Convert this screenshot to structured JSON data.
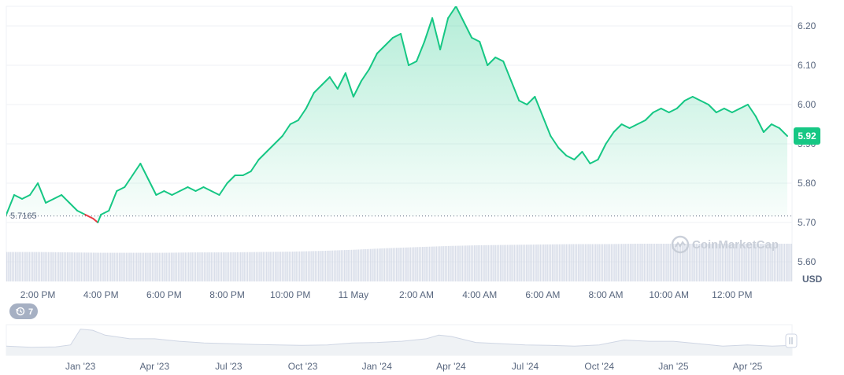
{
  "chart_data": {
    "type": "line",
    "currency": "USD",
    "watermark": "CoinMarketCap",
    "reference_label": "5.7165",
    "reference_value": 5.7165,
    "current_value_label": "5.92",
    "current_value": 5.92,
    "ylim": [
      5.55,
      6.25
    ],
    "y_ticks": [
      "5.60",
      "5.70",
      "5.80",
      "5.90",
      "6.00",
      "6.10",
      "6.20"
    ],
    "x_ticks": [
      "2:00 PM",
      "4:00 PM",
      "6:00 PM",
      "8:00 PM",
      "10:00 PM",
      "11 May",
      "2:00 AM",
      "4:00 AM",
      "6:00 AM",
      "8:00 AM",
      "10:00 AM",
      "12:00 PM"
    ],
    "x_tick_hours": [
      1,
      3,
      5,
      7,
      9,
      11,
      13,
      15,
      17,
      19,
      21,
      23
    ],
    "x_range_hours": [
      0,
      24.9
    ],
    "series": [
      {
        "x": [
          0,
          0.25,
          0.5,
          0.75,
          1.0,
          1.25,
          1.5,
          1.75,
          2.0,
          2.25,
          2.5,
          2.75,
          2.9,
          3.0,
          3.25,
          3.5,
          3.75,
          4.0,
          4.25,
          4.5,
          4.75,
          5.0,
          5.25,
          5.5,
          5.75,
          6.0,
          6.25,
          6.5,
          6.75,
          7.0,
          7.25,
          7.5,
          7.75,
          8.0,
          8.25,
          8.5,
          8.75,
          9.0,
          9.25,
          9.5,
          9.75,
          10.0,
          10.25,
          10.5,
          10.75,
          11.0,
          11.25,
          11.5,
          11.75,
          12.0,
          12.25,
          12.5,
          12.75,
          13.0,
          13.25,
          13.5,
          13.75,
          14.0,
          14.25,
          14.5,
          14.75,
          15.0,
          15.25,
          15.5,
          15.75,
          16.0,
          16.25,
          16.5,
          16.75,
          17.0,
          17.25,
          17.5,
          17.75,
          18.0,
          18.25,
          18.5,
          18.75,
          19.0,
          19.25,
          19.5,
          19.75,
          20.0,
          20.25,
          20.5,
          20.75,
          21.0,
          21.25,
          21.5,
          21.75,
          22.0,
          22.25,
          22.5,
          22.75,
          23.0,
          23.25,
          23.5,
          23.75,
          24.0,
          24.25,
          24.5,
          24.75
        ],
        "values": [
          5.72,
          5.77,
          5.76,
          5.77,
          5.8,
          5.75,
          5.76,
          5.77,
          5.75,
          5.73,
          5.72,
          5.71,
          5.7,
          5.72,
          5.73,
          5.78,
          5.79,
          5.82,
          5.85,
          5.81,
          5.77,
          5.78,
          5.77,
          5.78,
          5.79,
          5.78,
          5.79,
          5.78,
          5.77,
          5.8,
          5.82,
          5.82,
          5.83,
          5.86,
          5.88,
          5.9,
          5.92,
          5.95,
          5.96,
          5.99,
          6.03,
          6.05,
          6.07,
          6.04,
          6.08,
          6.02,
          6.06,
          6.09,
          6.13,
          6.15,
          6.17,
          6.18,
          6.1,
          6.11,
          6.16,
          6.22,
          6.14,
          6.22,
          6.25,
          6.21,
          6.17,
          6.16,
          6.1,
          6.12,
          6.11,
          6.06,
          6.01,
          6.0,
          6.02,
          5.97,
          5.92,
          5.89,
          5.87,
          5.86,
          5.88,
          5.85,
          5.86,
          5.9,
          5.93,
          5.95,
          5.94,
          5.95,
          5.96,
          5.98,
          5.99,
          5.98,
          5.99,
          6.01,
          6.02,
          6.01,
          6.0,
          5.98,
          5.99,
          5.98,
          5.99,
          6.0,
          5.97,
          5.93,
          5.95,
          5.94,
          5.92
        ]
      }
    ],
    "volume_bars": {
      "x_hours": [
        0,
        1,
        2,
        3,
        4,
        5,
        6,
        7,
        8,
        9,
        10,
        11,
        12,
        13,
        14,
        15,
        16,
        17,
        18,
        19,
        20,
        21,
        22,
        23,
        24
      ],
      "values": [
        0.78,
        0.78,
        0.77,
        0.76,
        0.76,
        0.76,
        0.77,
        0.77,
        0.78,
        0.79,
        0.81,
        0.84,
        0.88,
        0.91,
        0.94,
        0.96,
        0.97,
        0.98,
        0.99,
        0.99,
        1.0,
        1.0,
        1.0,
        1.0,
        1.0
      ]
    },
    "navigator": {
      "badge_label": "7",
      "x_ticks": [
        "Jan '23",
        "Apr '23",
        "Jul '23",
        "Oct '23",
        "Jan '24",
        "Apr '24",
        "Jul '24",
        "Oct '24",
        "Jan '25",
        "Apr '25"
      ],
      "x_tick_months": [
        3,
        6,
        9,
        12,
        15,
        18,
        21,
        24,
        27,
        30
      ],
      "x_range_months": [
        0,
        31.8
      ],
      "x": [
        0,
        1,
        2,
        2.6,
        3.0,
        3.5,
        4,
        5,
        6,
        7,
        8,
        9,
        10,
        11,
        12,
        13,
        14,
        15,
        16,
        17,
        17.5,
        18,
        19,
        20,
        21,
        22,
        23,
        24,
        25,
        26,
        27,
        28,
        29,
        30,
        31,
        31.8
      ],
      "values": [
        0.25,
        0.2,
        0.22,
        0.3,
        0.95,
        0.9,
        0.7,
        0.55,
        0.55,
        0.45,
        0.38,
        0.35,
        0.32,
        0.3,
        0.28,
        0.3,
        0.38,
        0.4,
        0.45,
        0.55,
        0.7,
        0.65,
        0.4,
        0.35,
        0.3,
        0.28,
        0.25,
        0.3,
        0.5,
        0.45,
        0.45,
        0.35,
        0.25,
        0.3,
        0.25,
        0.28
      ]
    },
    "colors": {
      "up_line": "#16c784",
      "down_line": "#ea3943",
      "fill_top": "#16c784",
      "badge": "#16c784",
      "grid": "#eff2f5",
      "volume": "#cfd6e4",
      "navigator_fill": "#eff2f5",
      "navigator_line": "#cfd6e4",
      "text": "#58667e"
    }
  }
}
